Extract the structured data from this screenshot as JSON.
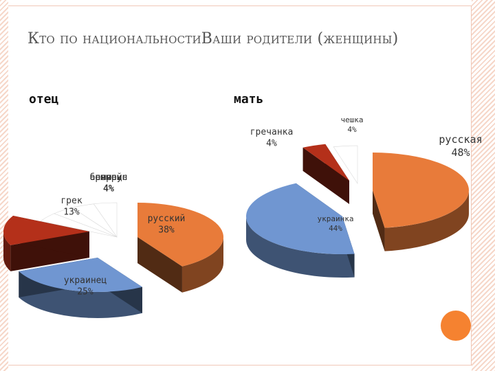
{
  "title": "Кто по национальностиВаши родители (женщины)",
  "accent_color": "#f58230",
  "chart_data": [
    {
      "type": "pie",
      "title": "отец",
      "slices": [
        {
          "label": "русский",
          "value": 38,
          "text": "38%",
          "color": "#e87b3a"
        },
        {
          "label": "украинец",
          "value": 25,
          "text": "25%",
          "color": "#7096d1"
        },
        {
          "label": "грек",
          "value": 13,
          "text": "13%",
          "color": "#b4301a"
        },
        {
          "label": "белорус",
          "value": 4,
          "text": "4%",
          "color": "#ffffff"
        },
        {
          "label": "немец",
          "value": 4,
          "text": "4%",
          "color": "#ffffff"
        },
        {
          "label": "еврей",
          "value": 4,
          "text": "4%",
          "color": "#ffffff"
        },
        {
          "label": "армянин",
          "value": 4,
          "text": "4%",
          "color": "#ffffff"
        }
      ]
    },
    {
      "type": "pie",
      "title": "мать",
      "slices": [
        {
          "label": "русская",
          "value": 48,
          "text": "48%",
          "color": "#e87b3a"
        },
        {
          "label": "украинка",
          "value": 44,
          "text": "44%",
          "color": "#7096d1"
        },
        {
          "label": "гречанка",
          "value": 4,
          "text": "4%",
          "color": "#b4301a"
        },
        {
          "label": "чешка",
          "value": 4,
          "text": "4%",
          "color": "#ffffff"
        }
      ]
    }
  ]
}
